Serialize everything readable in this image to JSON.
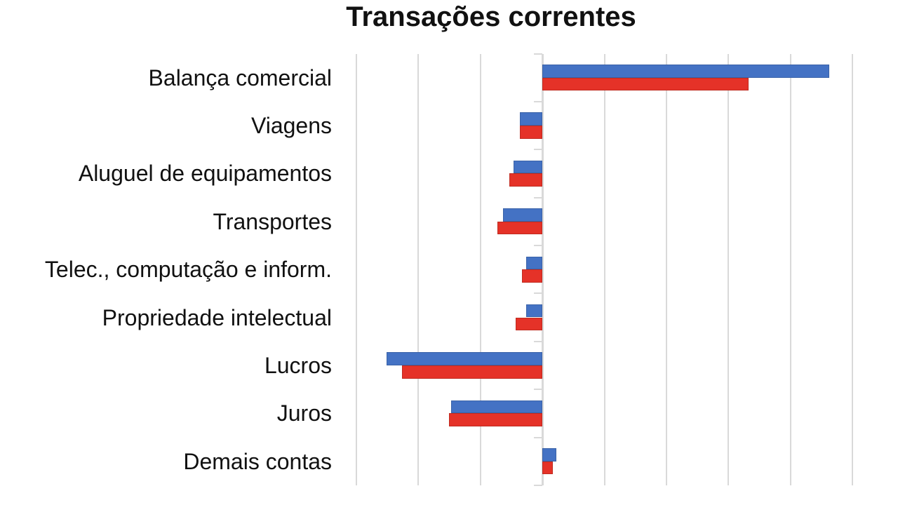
{
  "chart_data": {
    "type": "bar",
    "orientation": "horizontal",
    "title": "Transações correntes",
    "categories": [
      "Balança comercial",
      "Viagens",
      "Aluguel de equipamentos",
      "Transportes",
      "Telec., computação e inform.",
      "Propriedade intelectual",
      "Lucros",
      "Juros",
      "Demais contas"
    ],
    "series": [
      {
        "name": "series-blue",
        "color": "#4472C4",
        "border_color": "#3A62A8",
        "values": [
          46.3,
          -3.6,
          -4.6,
          -6.3,
          -2.6,
          -2.6,
          -25.1,
          -14.7,
          2.2
        ]
      },
      {
        "name": "series-red",
        "color": "#E53228",
        "border_color": "#C02B20",
        "values": [
          33.3,
          -3.6,
          -5.3,
          -7.2,
          -3.3,
          -4.3,
          -22.7,
          -15.1,
          1.7
        ]
      }
    ],
    "xlim": [
      -30,
      50
    ],
    "grid_step": 10,
    "gridline_color": "#D9D9D9",
    "axis_tick_color": "#D9D9D9",
    "legend": "none",
    "xlabel": "",
    "ylabel": ""
  }
}
